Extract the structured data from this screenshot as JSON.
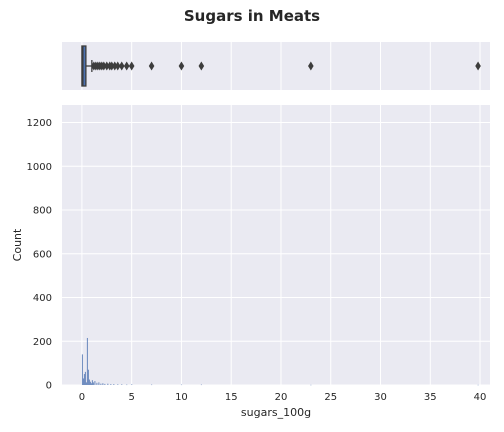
{
  "chart_data": [
    {
      "type": "box",
      "title": "Sugars in Meats",
      "xlim": [
        -2,
        41
      ],
      "box": {
        "q1": 0.0,
        "median": 0.1,
        "q3": 0.4,
        "whisker_low": 0.0,
        "whisker_high": 1.0
      },
      "outliers": [
        1.2,
        1.4,
        1.6,
        1.8,
        2.0,
        2.2,
        2.5,
        2.8,
        3.0,
        3.3,
        3.6,
        4.0,
        4.5,
        5.0,
        7.0,
        10.0,
        12.0,
        23.0,
        39.8
      ],
      "colors": {
        "box": "#4c72b0",
        "background": "#eaeaf2",
        "grid": "#ffffff",
        "outlier": "#3d3d3d"
      },
      "grid": true
    },
    {
      "type": "histogram",
      "xlabel": "sugars_100g",
      "ylabel": "Count",
      "xlim": [
        -2,
        41
      ],
      "ylim": [
        0,
        1280
      ],
      "xticks": [
        "0",
        "5",
        "10",
        "15",
        "20",
        "25",
        "30",
        "35",
        "40"
      ],
      "yticks": [
        "0",
        "200",
        "400",
        "600",
        "800",
        "1000",
        "1200"
      ],
      "bins": [
        {
          "x": 0.05,
          "count": 140
        },
        {
          "x": 0.15,
          "count": 30
        },
        {
          "x": 0.25,
          "count": 50
        },
        {
          "x": 0.35,
          "count": 60
        },
        {
          "x": 0.45,
          "count": 12
        },
        {
          "x": 0.55,
          "count": 215
        },
        {
          "x": 0.65,
          "count": 70
        },
        {
          "x": 0.75,
          "count": 25
        },
        {
          "x": 0.85,
          "count": 15
        },
        {
          "x": 0.95,
          "count": 8
        },
        {
          "x": 1.05,
          "count": 22
        },
        {
          "x": 1.15,
          "count": 12
        },
        {
          "x": 1.3,
          "count": 18
        },
        {
          "x": 1.5,
          "count": 10
        },
        {
          "x": 1.7,
          "count": 12
        },
        {
          "x": 1.9,
          "count": 6
        },
        {
          "x": 2.1,
          "count": 8
        },
        {
          "x": 2.3,
          "count": 5
        },
        {
          "x": 2.6,
          "count": 6
        },
        {
          "x": 2.9,
          "count": 4
        },
        {
          "x": 3.2,
          "count": 4
        },
        {
          "x": 3.6,
          "count": 3
        },
        {
          "x": 4.0,
          "count": 3
        },
        {
          "x": 4.5,
          "count": 2
        },
        {
          "x": 5.0,
          "count": 3
        },
        {
          "x": 7.0,
          "count": 2
        },
        {
          "x": 10.0,
          "count": 2
        },
        {
          "x": 12.0,
          "count": 2
        },
        {
          "x": 23.0,
          "count": 1
        },
        {
          "x": 39.8,
          "count": 1
        }
      ],
      "colors": {
        "bar": "#4c72b0",
        "background": "#eaeaf2",
        "grid": "#ffffff"
      },
      "grid": true
    }
  ]
}
